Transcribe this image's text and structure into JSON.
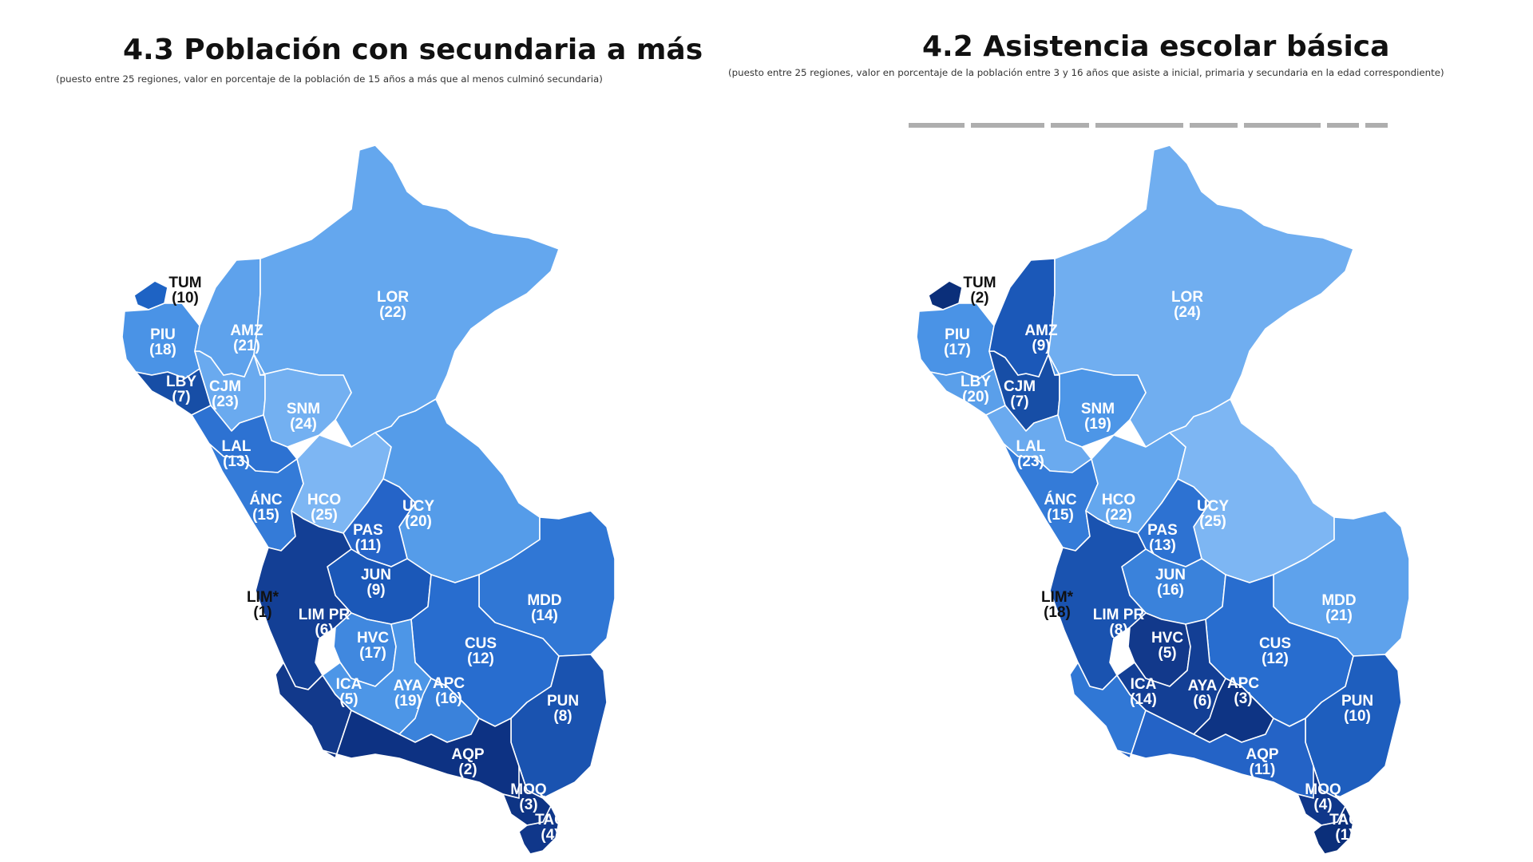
{
  "panels": [
    {
      "title": "4.3 Población con secundaria a más",
      "subtitle": "(puesto entre 25 regiones, valor en porcentaje de la población de 15 años a más que al menos culminó secundaria)",
      "regions": [
        {
          "code": "TUM",
          "rank": "(10)",
          "fill": "#1e63c4",
          "text_color": "#111111"
        },
        {
          "code": "PIU",
          "rank": "(18)",
          "fill": "#4a93e6",
          "text_color": "#ffffff"
        },
        {
          "code": "LBY",
          "rank": "(7)",
          "fill": "#174ea6",
          "text_color": "#ffffff"
        },
        {
          "code": "CJM",
          "rank": "(23)",
          "fill": "#6aaaef",
          "text_color": "#ffffff"
        },
        {
          "code": "AMZ",
          "rank": "(21)",
          "fill": "#5ea2ec",
          "text_color": "#ffffff"
        },
        {
          "code": "LOR",
          "rank": "(22)",
          "fill": "#64a7ee",
          "text_color": "#ffffff"
        },
        {
          "code": "SNM",
          "rank": "(24)",
          "fill": "#73b0f1",
          "text_color": "#ffffff"
        },
        {
          "code": "LAL",
          "rank": "(13)",
          "fill": "#2d72d2",
          "text_color": "#ffffff"
        },
        {
          "code": "ÁNC",
          "rank": "(15)",
          "fill": "#347bd8",
          "text_color": "#ffffff"
        },
        {
          "code": "HCO",
          "rank": "(25)",
          "fill": "#7db6f3",
          "text_color": "#ffffff"
        },
        {
          "code": "UCY",
          "rank": "(20)",
          "fill": "#559ce9",
          "text_color": "#ffffff"
        },
        {
          "code": "PAS",
          "rank": "(11)",
          "fill": "#2564c8",
          "text_color": "#ffffff"
        },
        {
          "code": "JUN",
          "rank": "(9)",
          "fill": "#1b58b8",
          "text_color": "#ffffff"
        },
        {
          "code": "LIM*",
          "rank": "(1)",
          "fill": "#0b2f7a",
          "text_color": "#111111"
        },
        {
          "code": "LIM PR",
          "rank": "(6)",
          "fill": "#133f95",
          "text_color": "#ffffff"
        },
        {
          "code": "HVC",
          "rank": "(17)",
          "fill": "#4088df",
          "text_color": "#ffffff"
        },
        {
          "code": "MDD",
          "rank": "(14)",
          "fill": "#3077d5",
          "text_color": "#ffffff"
        },
        {
          "code": "CUS",
          "rank": "(12)",
          "fill": "#286dcf",
          "text_color": "#ffffff"
        },
        {
          "code": "ICA",
          "rank": "(5)",
          "fill": "#12398b",
          "text_color": "#ffffff"
        },
        {
          "code": "AYA",
          "rank": "(19)",
          "fill": "#4d96e7",
          "text_color": "#ffffff"
        },
        {
          "code": "APC",
          "rank": "(16)",
          "fill": "#3a82db",
          "text_color": "#ffffff"
        },
        {
          "code": "PUN",
          "rank": "(8)",
          "fill": "#1a53b0",
          "text_color": "#ffffff"
        },
        {
          "code": "AQP",
          "rank": "(2)",
          "fill": "#0d3283",
          "text_color": "#ffffff"
        },
        {
          "code": "MOQ",
          "rank": "(3)",
          "fill": "#0e3484",
          "text_color": "#ffffff"
        },
        {
          "code": "TAC",
          "rank": "(4)",
          "fill": "#10378a",
          "text_color": "#ffffff"
        }
      ]
    },
    {
      "title": "4.2 Asistencia escolar básica",
      "subtitle": "(puesto entre 25 regiones, valor en porcentaje de la población entre 3 y 16 años que asiste a inicial, primaria y secundaria en la edad correspondiente)",
      "regions": [
        {
          "code": "TUM",
          "rank": "(2)",
          "fill": "#0b2f7a",
          "text_color": "#111111"
        },
        {
          "code": "PIU",
          "rank": "(17)",
          "fill": "#4a93e6",
          "text_color": "#ffffff"
        },
        {
          "code": "LBY",
          "rank": "(20)",
          "fill": "#5a9fea",
          "text_color": "#ffffff"
        },
        {
          "code": "CJM",
          "rank": "(7)",
          "fill": "#174ea6",
          "text_color": "#ffffff"
        },
        {
          "code": "AMZ",
          "rank": "(9)",
          "fill": "#1b58b8",
          "text_color": "#ffffff"
        },
        {
          "code": "LOR",
          "rank": "(24)",
          "fill": "#70aef0",
          "text_color": "#ffffff"
        },
        {
          "code": "SNM",
          "rank": "(19)",
          "fill": "#4d96e7",
          "text_color": "#ffffff"
        },
        {
          "code": "LAL",
          "rank": "(23)",
          "fill": "#6aaaef",
          "text_color": "#ffffff"
        },
        {
          "code": "ÁNC",
          "rank": "(15)",
          "fill": "#347bd8",
          "text_color": "#ffffff"
        },
        {
          "code": "HCO",
          "rank": "(22)",
          "fill": "#64a7ee",
          "text_color": "#ffffff"
        },
        {
          "code": "UCY",
          "rank": "(25)",
          "fill": "#7db6f3",
          "text_color": "#ffffff"
        },
        {
          "code": "PAS",
          "rank": "(13)",
          "fill": "#2d72d2",
          "text_color": "#ffffff"
        },
        {
          "code": "JUN",
          "rank": "(16)",
          "fill": "#3a82db",
          "text_color": "#ffffff"
        },
        {
          "code": "LIM*",
          "rank": "(18)",
          "fill": "#4f98e8",
          "text_color": "#111111"
        },
        {
          "code": "LIM PR",
          "rank": "(8)",
          "fill": "#1a53b0",
          "text_color": "#ffffff"
        },
        {
          "code": "HVC",
          "rank": "(5)",
          "fill": "#12398b",
          "text_color": "#ffffff"
        },
        {
          "code": "MDD",
          "rank": "(21)",
          "fill": "#5ea2ec",
          "text_color": "#ffffff"
        },
        {
          "code": "CUS",
          "rank": "(12)",
          "fill": "#286dcf",
          "text_color": "#ffffff"
        },
        {
          "code": "ICA",
          "rank": "(14)",
          "fill": "#3077d5",
          "text_color": "#ffffff"
        },
        {
          "code": "AYA",
          "rank": "(6)",
          "fill": "#133f95",
          "text_color": "#ffffff"
        },
        {
          "code": "APC",
          "rank": "(3)",
          "fill": "#0e3484",
          "text_color": "#ffffff"
        },
        {
          "code": "PUN",
          "rank": "(10)",
          "fill": "#1e5ebe",
          "text_color": "#ffffff"
        },
        {
          "code": "AQP",
          "rank": "(11)",
          "fill": "#2463c6",
          "text_color": "#ffffff"
        },
        {
          "code": "MOQ",
          "rank": "(4)",
          "fill": "#10378a",
          "text_color": "#ffffff"
        },
        {
          "code": "TAC",
          "rank": "(1)",
          "fill": "#0b2f7a",
          "text_color": "#ffffff"
        }
      ]
    }
  ]
}
